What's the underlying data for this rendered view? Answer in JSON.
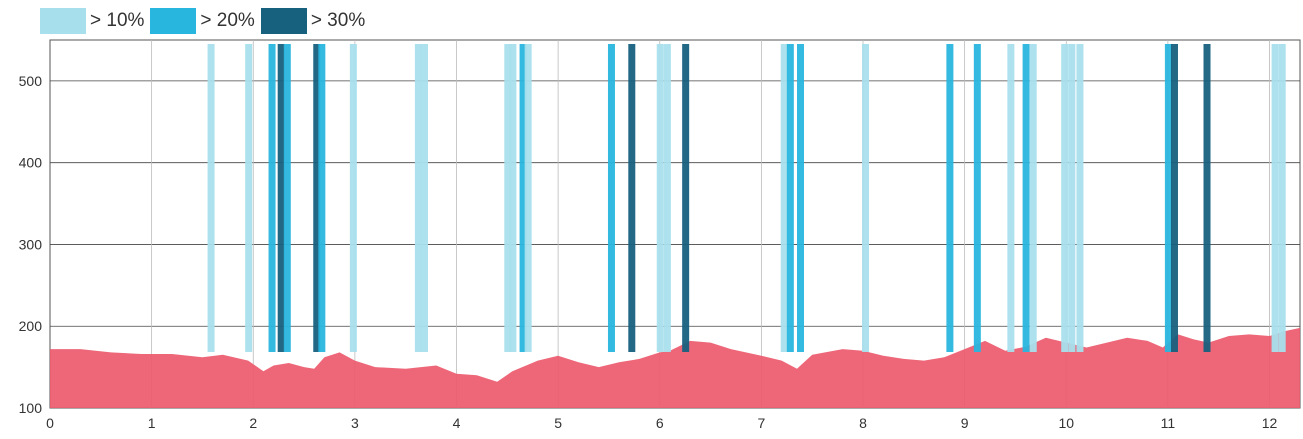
{
  "legend": [
    {
      "label": "> 10%",
      "color": "#a8dfec"
    },
    {
      "label": "> 20%",
      "color": "#29b6de"
    },
    {
      "label": "> 30%",
      "color": "#17607e"
    }
  ],
  "chart_data": {
    "type": "area",
    "title": "",
    "xlabel": "",
    "ylabel": "",
    "xlim": [
      0,
      12.3
    ],
    "ylim": [
      100,
      550
    ],
    "x_ticks": [
      "0",
      "1",
      "2",
      "3",
      "4",
      "5",
      "6",
      "7",
      "8",
      "9",
      "10",
      "11",
      "12"
    ],
    "y_ticks": [
      "100",
      "200",
      "300",
      "400",
      "500"
    ],
    "grid": true,
    "legend_position": "top-left",
    "area_color": "#ec5a6e",
    "series": [
      {
        "values": [
          [
            0.0,
            172
          ],
          [
            0.3,
            172
          ],
          [
            0.6,
            168
          ],
          [
            0.9,
            166
          ],
          [
            1.2,
            166
          ],
          [
            1.5,
            162
          ],
          [
            1.7,
            165
          ],
          [
            1.95,
            158
          ],
          [
            2.1,
            145
          ],
          [
            2.2,
            152
          ],
          [
            2.35,
            155
          ],
          [
            2.5,
            150
          ],
          [
            2.6,
            148
          ],
          [
            2.7,
            162
          ],
          [
            2.85,
            168
          ],
          [
            3.0,
            158
          ],
          [
            3.2,
            150
          ],
          [
            3.5,
            148
          ],
          [
            3.8,
            152
          ],
          [
            4.0,
            142
          ],
          [
            4.2,
            140
          ],
          [
            4.4,
            132
          ],
          [
            4.55,
            145
          ],
          [
            4.8,
            158
          ],
          [
            5.0,
            164
          ],
          [
            5.2,
            156
          ],
          [
            5.4,
            150
          ],
          [
            5.6,
            156
          ],
          [
            5.8,
            160
          ],
          [
            6.0,
            168
          ],
          [
            6.1,
            170
          ],
          [
            6.3,
            182
          ],
          [
            6.5,
            180
          ],
          [
            6.7,
            172
          ],
          [
            7.0,
            164
          ],
          [
            7.2,
            158
          ],
          [
            7.35,
            148
          ],
          [
            7.5,
            165
          ],
          [
            7.8,
            172
          ],
          [
            8.0,
            170
          ],
          [
            8.2,
            164
          ],
          [
            8.4,
            160
          ],
          [
            8.6,
            158
          ],
          [
            8.8,
            162
          ],
          [
            9.0,
            172
          ],
          [
            9.2,
            182
          ],
          [
            9.4,
            170
          ],
          [
            9.6,
            175
          ],
          [
            9.8,
            186
          ],
          [
            10.0,
            180
          ],
          [
            10.2,
            174
          ],
          [
            10.4,
            180
          ],
          [
            10.6,
            186
          ],
          [
            10.8,
            182
          ],
          [
            10.95,
            174
          ],
          [
            11.1,
            190
          ],
          [
            11.25,
            184
          ],
          [
            11.4,
            180
          ],
          [
            11.6,
            188
          ],
          [
            11.8,
            190
          ],
          [
            12.0,
            188
          ],
          [
            12.15,
            194
          ],
          [
            12.3,
            198
          ]
        ]
      }
    ],
    "markers": [
      {
        "x": 1.58,
        "level": 1
      },
      {
        "x": 1.95,
        "level": 1
      },
      {
        "x": 2.18,
        "level": 2
      },
      {
        "x": 2.27,
        "level": 3
      },
      {
        "x": 2.33,
        "level": 2
      },
      {
        "x": 2.62,
        "level": 3
      },
      {
        "x": 2.67,
        "level": 2
      },
      {
        "x": 2.98,
        "level": 1
      },
      {
        "x": 3.62,
        "level": 1
      },
      {
        "x": 3.68,
        "level": 1
      },
      {
        "x": 4.5,
        "level": 1
      },
      {
        "x": 4.55,
        "level": 1
      },
      {
        "x": 4.65,
        "level": 2
      },
      {
        "x": 4.7,
        "level": 1
      },
      {
        "x": 5.52,
        "level": 2
      },
      {
        "x": 5.72,
        "level": 3
      },
      {
        "x": 6.0,
        "level": 1
      },
      {
        "x": 6.07,
        "level": 1
      },
      {
        "x": 6.25,
        "level": 3
      },
      {
        "x": 7.22,
        "level": 1
      },
      {
        "x": 7.28,
        "level": 2
      },
      {
        "x": 7.38,
        "level": 2
      },
      {
        "x": 8.02,
        "level": 1
      },
      {
        "x": 8.85,
        "level": 2
      },
      {
        "x": 9.12,
        "level": 2
      },
      {
        "x": 9.45,
        "level": 1
      },
      {
        "x": 9.6,
        "level": 2
      },
      {
        "x": 9.67,
        "level": 1
      },
      {
        "x": 9.98,
        "level": 1
      },
      {
        "x": 10.05,
        "level": 1
      },
      {
        "x": 10.13,
        "level": 1
      },
      {
        "x": 11.0,
        "level": 2
      },
      {
        "x": 11.06,
        "level": 3
      },
      {
        "x": 11.38,
        "level": 3
      },
      {
        "x": 12.05,
        "level": 1
      },
      {
        "x": 12.12,
        "level": 1
      }
    ]
  }
}
